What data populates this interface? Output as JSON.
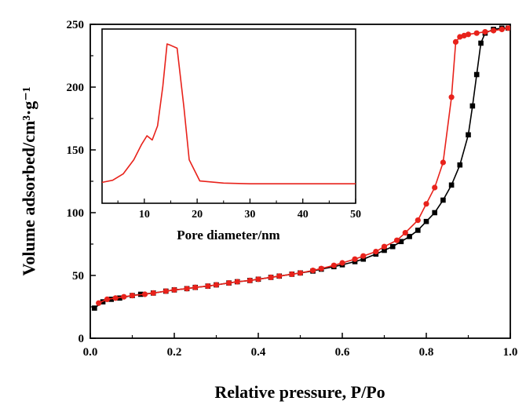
{
  "chart_data": [
    {
      "type": "line",
      "title": "",
      "xlabel": "Relative pressure, P/Po",
      "ylabel": "Volume adsorbed/cm³·g⁻¹",
      "xlim": [
        0,
        1.0
      ],
      "ylim": [
        0,
        250
      ],
      "xticks": [
        "0.0",
        "0.2",
        "0.4",
        "0.6",
        "0.8",
        "1.0"
      ],
      "yticks": [
        "0",
        "50",
        "100",
        "150",
        "200",
        "250"
      ],
      "grid": false,
      "series": [
        {
          "color": "#000000",
          "marker": "square",
          "points": [
            [
              0.01,
              24
            ],
            [
              0.03,
              29
            ],
            [
              0.05,
              31
            ],
            [
              0.07,
              32
            ],
            [
              0.1,
              34
            ],
            [
              0.12,
              35
            ],
            [
              0.15,
              36
            ],
            [
              0.18,
              37.5
            ],
            [
              0.2,
              38.5
            ],
            [
              0.23,
              39.5
            ],
            [
              0.25,
              40.5
            ],
            [
              0.28,
              41.5
            ],
            [
              0.3,
              42.5
            ],
            [
              0.33,
              44
            ],
            [
              0.35,
              45
            ],
            [
              0.38,
              46
            ],
            [
              0.4,
              47
            ],
            [
              0.43,
              48.5
            ],
            [
              0.45,
              49.5
            ],
            [
              0.48,
              51
            ],
            [
              0.5,
              52
            ],
            [
              0.53,
              53.5
            ],
            [
              0.55,
              55
            ],
            [
              0.58,
              57
            ],
            [
              0.6,
              58.5
            ],
            [
              0.63,
              61
            ],
            [
              0.65,
              63
            ],
            [
              0.68,
              67
            ],
            [
              0.7,
              70
            ],
            [
              0.72,
              73
            ],
            [
              0.74,
              77
            ],
            [
              0.76,
              81
            ],
            [
              0.78,
              86
            ],
            [
              0.8,
              93
            ],
            [
              0.82,
              100
            ],
            [
              0.84,
              110
            ],
            [
              0.86,
              122
            ],
            [
              0.88,
              138
            ],
            [
              0.9,
              162
            ],
            [
              0.91,
              185
            ],
            [
              0.92,
              210
            ],
            [
              0.93,
              235
            ],
            [
              0.94,
              243
            ],
            [
              0.96,
              246
            ],
            [
              0.98,
              247
            ],
            [
              0.995,
              247
            ]
          ]
        },
        {
          "color": "#e8221b",
          "marker": "circle",
          "points": [
            [
              0.02,
              28
            ],
            [
              0.04,
              31
            ],
            [
              0.06,
              32
            ],
            [
              0.08,
              33
            ],
            [
              0.1,
              34
            ],
            [
              0.13,
              35
            ],
            [
              0.15,
              36
            ],
            [
              0.18,
              37.5
            ],
            [
              0.2,
              38.5
            ],
            [
              0.23,
              39.5
            ],
            [
              0.25,
              40.5
            ],
            [
              0.28,
              41.5
            ],
            [
              0.3,
              42.5
            ],
            [
              0.33,
              44
            ],
            [
              0.35,
              45
            ],
            [
              0.38,
              46
            ],
            [
              0.4,
              47
            ],
            [
              0.43,
              48.5
            ],
            [
              0.45,
              49.5
            ],
            [
              0.48,
              51
            ],
            [
              0.5,
              52
            ],
            [
              0.53,
              54
            ],
            [
              0.55,
              55.5
            ],
            [
              0.58,
              58
            ],
            [
              0.6,
              60
            ],
            [
              0.63,
              63
            ],
            [
              0.65,
              65.5
            ],
            [
              0.68,
              69
            ],
            [
              0.7,
              73
            ],
            [
              0.73,
              78
            ],
            [
              0.75,
              84
            ],
            [
              0.78,
              94
            ],
            [
              0.8,
              107
            ],
            [
              0.82,
              120
            ],
            [
              0.84,
              140
            ],
            [
              0.86,
              192
            ],
            [
              0.87,
              236
            ],
            [
              0.88,
              240
            ],
            [
              0.89,
              241
            ],
            [
              0.9,
              242
            ],
            [
              0.92,
              243
            ],
            [
              0.94,
              244
            ],
            [
              0.96,
              245
            ],
            [
              0.98,
              246
            ],
            [
              0.995,
              247
            ]
          ]
        }
      ]
    },
    {
      "type": "line",
      "title": "",
      "xlabel": "Pore diameter/nm",
      "ylabel": "",
      "xlim": [
        2,
        50
      ],
      "xticks": [
        "10",
        "20",
        "30",
        "40",
        "50"
      ],
      "grid": false,
      "series": [
        {
          "color": "#e8221b",
          "points": [
            [
              2,
              0.02
            ],
            [
              4,
              0.035
            ],
            [
              6,
              0.08
            ],
            [
              8,
              0.18
            ],
            [
              9.5,
              0.29
            ],
            [
              10.5,
              0.35
            ],
            [
              11.5,
              0.32
            ],
            [
              12.5,
              0.42
            ],
            [
              13.5,
              0.7
            ],
            [
              14.3,
              1.0
            ],
            [
              15,
              0.99
            ],
            [
              16.2,
              0.97
            ],
            [
              17.5,
              0.55
            ],
            [
              18.5,
              0.18
            ],
            [
              20.5,
              0.03
            ],
            [
              25,
              0.015
            ],
            [
              30,
              0.01
            ],
            [
              50,
              0.01
            ]
          ]
        }
      ]
    }
  ]
}
